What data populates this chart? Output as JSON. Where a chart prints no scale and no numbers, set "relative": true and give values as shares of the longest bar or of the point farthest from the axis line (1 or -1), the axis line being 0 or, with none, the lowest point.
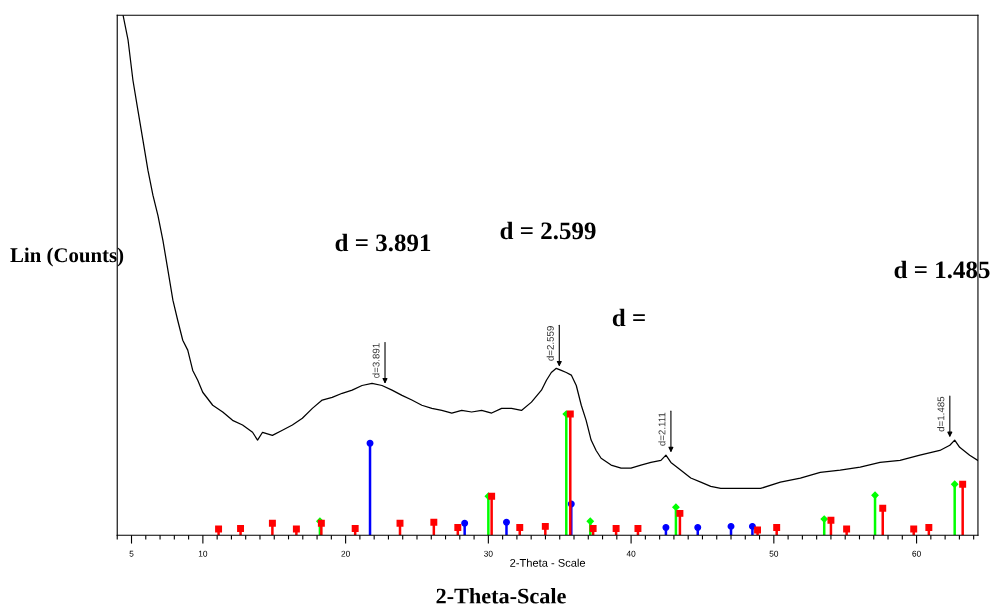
{
  "chart_data": {
    "type": "line",
    "relative": true,
    "xlabel": "2-Theta - Scale",
    "ylabel": "Lin (Counts)",
    "xlim": [
      4,
      64.3
    ],
    "xticks": [
      {
        "value": 4,
        "label": null
      },
      5,
      {
        "value": 6,
        "label": null
      },
      {
        "value": 7,
        "label": null
      },
      {
        "value": 8,
        "label": null
      },
      {
        "value": 9,
        "label": null
      },
      10,
      {
        "value": 11,
        "label": null
      },
      {
        "value": 12,
        "label": null
      },
      {
        "value": 13,
        "label": null
      },
      {
        "value": 14,
        "label": null
      },
      {
        "value": 15,
        "label": null
      },
      {
        "value": 16,
        "label": null
      },
      {
        "value": 17,
        "label": null
      },
      {
        "value": 18,
        "label": null
      },
      {
        "value": 19,
        "label": null
      },
      20,
      {
        "value": 21,
        "label": null
      },
      {
        "value": 22,
        "label": null
      },
      {
        "value": 23,
        "label": null
      },
      {
        "value": 24,
        "label": null
      },
      {
        "value": 25,
        "label": null
      },
      {
        "value": 26,
        "label": null
      },
      {
        "value": 27,
        "label": null
      },
      {
        "value": 28,
        "label": null
      },
      {
        "value": 29,
        "label": null
      },
      30,
      {
        "value": 31,
        "label": null
      },
      {
        "value": 32,
        "label": null
      },
      {
        "value": 33,
        "label": null
      },
      {
        "value": 34,
        "label": null
      },
      {
        "value": 35,
        "label": null
      },
      {
        "value": 36,
        "label": null
      },
      {
        "value": 37,
        "label": null
      },
      {
        "value": 38,
        "label": null
      },
      {
        "value": 39,
        "label": null
      },
      40,
      {
        "value": 41,
        "label": null
      },
      {
        "value": 42,
        "label": null
      },
      {
        "value": 43,
        "label": null
      },
      {
        "value": 44,
        "label": null
      },
      {
        "value": 45,
        "label": null
      },
      {
        "value": 46,
        "label": null
      },
      {
        "value": 47,
        "label": null
      },
      {
        "value": 48,
        "label": null
      },
      {
        "value": 49,
        "label": null
      },
      50,
      {
        "value": 51,
        "label": null
      },
      {
        "value": 52,
        "label": null
      },
      {
        "value": 53,
        "label": null
      },
      {
        "value": 54,
        "label": null
      },
      {
        "value": 55,
        "label": null
      },
      {
        "value": 56,
        "label": null
      },
      {
        "value": 57,
        "label": null
      },
      {
        "value": 58,
        "label": null
      },
      {
        "value": 59,
        "label": null
      },
      60,
      {
        "value": 61,
        "label": null
      },
      {
        "value": 62,
        "label": null
      },
      {
        "value": 63,
        "label": null
      },
      {
        "value": 64,
        "label": null
      }
    ],
    "grid": false,
    "legend": false,
    "series": [
      {
        "color": "#000000",
        "marker": "none",
        "x": [
          4.41,
          4.76,
          5.1,
          5.45,
          5.8,
          6.15,
          6.5,
          6.85,
          7.2,
          7.55,
          7.9,
          8.24,
          8.59,
          8.94,
          9.29,
          9.64,
          9.99,
          10.69,
          11.39,
          12.08,
          12.78,
          13.48,
          13.83,
          14.18,
          14.87,
          15.57,
          16.27,
          16.97,
          17.67,
          18.36,
          19.06,
          19.76,
          20.46,
          21.15,
          21.85,
          22.55,
          23.25,
          23.95,
          24.64,
          25.34,
          26.04,
          26.74,
          27.44,
          28.13,
          28.83,
          29.53,
          30.23,
          30.93,
          31.62,
          32.32,
          33.02,
          33.72,
          34.07,
          34.41,
          34.76,
          35.11,
          35.46,
          35.81,
          36.16,
          36.51,
          36.85,
          37.2,
          37.55,
          37.9,
          38.6,
          39.3,
          39.99,
          40.69,
          41.39,
          42.09,
          42.44,
          42.79,
          43.49,
          44.18,
          44.88,
          45.58,
          46.28,
          47.67,
          49.07,
          50.46,
          51.86,
          53.25,
          54.65,
          56.05,
          57.44,
          58.84,
          60.23,
          61.63,
          62.33,
          62.67,
          63.02,
          63.72,
          64.28
        ],
        "values": [
          1.0,
          0.952,
          0.875,
          0.817,
          0.76,
          0.702,
          0.654,
          0.615,
          0.567,
          0.51,
          0.452,
          0.413,
          0.375,
          0.356,
          0.317,
          0.298,
          0.275,
          0.25,
          0.237,
          0.221,
          0.212,
          0.198,
          0.183,
          0.198,
          0.192,
          0.202,
          0.212,
          0.225,
          0.244,
          0.26,
          0.265,
          0.273,
          0.279,
          0.288,
          0.292,
          0.288,
          0.279,
          0.269,
          0.26,
          0.25,
          0.244,
          0.24,
          0.235,
          0.24,
          0.237,
          0.24,
          0.235,
          0.244,
          0.244,
          0.24,
          0.256,
          0.279,
          0.298,
          0.313,
          0.321,
          0.317,
          0.313,
          0.308,
          0.288,
          0.25,
          0.221,
          0.183,
          0.163,
          0.148,
          0.135,
          0.129,
          0.129,
          0.135,
          0.14,
          0.144,
          0.154,
          0.14,
          0.125,
          0.11,
          0.102,
          0.094,
          0.09,
          0.09,
          0.09,
          0.102,
          0.11,
          0.121,
          0.125,
          0.131,
          0.14,
          0.144,
          0.154,
          0.163,
          0.173,
          0.183,
          0.169,
          0.154,
          0.144
        ]
      },
      {
        "type": "lollipop",
        "color": "#0000ff",
        "marker": "circle",
        "x": [
          21.71,
          28.34,
          31.27,
          35.81,
          42.44,
          44.67,
          47.0,
          48.5
        ],
        "values": [
          0.177,
          0.023,
          0.025,
          0.06,
          0.015,
          0.015,
          0.017,
          0.017
        ]
      },
      {
        "type": "lollipop",
        "color": "#00ff00",
        "marker": "diamond",
        "x": [
          18.2,
          30.0,
          35.46,
          37.14,
          43.14,
          53.53,
          57.09,
          62.67
        ],
        "values": [
          0.027,
          0.075,
          0.233,
          0.027,
          0.054,
          0.031,
          0.077,
          0.098
        ]
      },
      {
        "type": "lollipop",
        "color": "#ff0000",
        "marker": "square",
        "x": [
          11.1,
          12.64,
          14.87,
          16.55,
          18.3,
          20.67,
          23.81,
          26.18,
          27.86,
          30.23,
          32.2,
          33.99,
          35.74,
          37.34,
          38.95,
          40.48,
          43.42,
          48.86,
          50.2,
          54.0,
          55.1,
          57.63,
          59.8,
          60.86,
          63.23
        ],
        "values": [
          0.012,
          0.013,
          0.023,
          0.012,
          0.023,
          0.013,
          0.023,
          0.025,
          0.015,
          0.075,
          0.015,
          0.017,
          0.233,
          0.013,
          0.013,
          0.013,
          0.042,
          0.01,
          0.015,
          0.029,
          0.012,
          0.052,
          0.012,
          0.015,
          0.098
        ]
      }
    ],
    "annotations": [
      {
        "text": "d=3.891",
        "x": 22.76,
        "y": 0.286
      },
      {
        "text": "d=2.559",
        "x": 34.97,
        "y": 0.319
      },
      {
        "text": "d=2.111",
        "x": 42.79,
        "y": 0.154
      },
      {
        "text": "d=1.485",
        "x": 62.33,
        "y": 0.183
      },
      "d = 3.891",
      "d = 2.599",
      "d =",
      "d = 1.485",
      "2-Theta-Scale"
    ]
  }
}
